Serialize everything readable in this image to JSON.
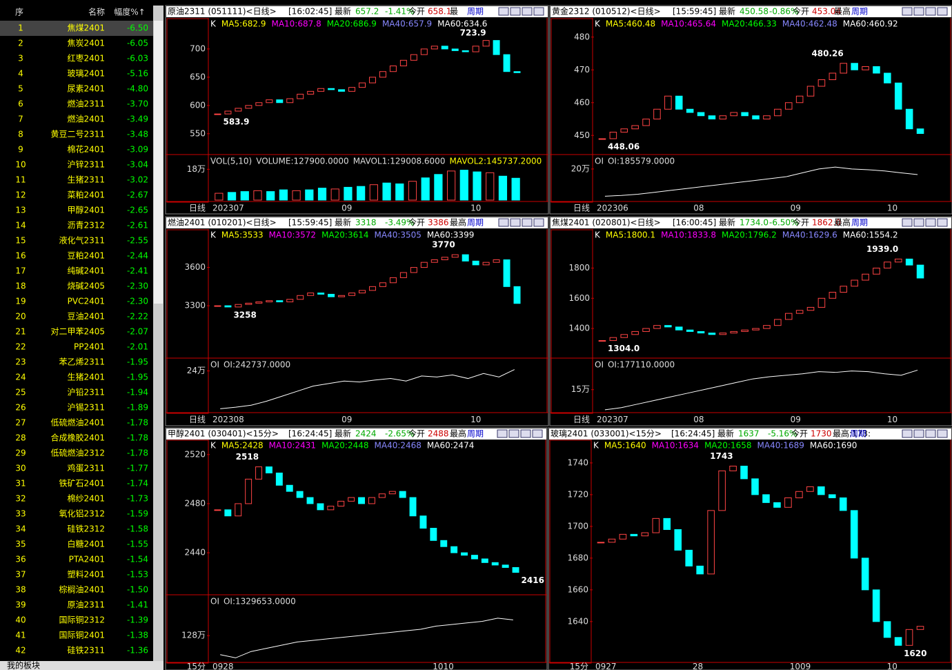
{
  "list": {
    "headers": [
      "序",
      "名称",
      "幅度%↑"
    ],
    "footer": "我的板块",
    "rows": [
      [
        "1",
        "焦煤2401",
        "-6.50"
      ],
      [
        "2",
        "焦炭2401",
        "-6.05"
      ],
      [
        "3",
        "红枣2401",
        "-6.03"
      ],
      [
        "4",
        "玻璃2401",
        "-5.16"
      ],
      [
        "5",
        "尿素2401",
        "-4.80"
      ],
      [
        "6",
        "燃油2311",
        "-3.70"
      ],
      [
        "7",
        "燃油2401",
        "-3.49"
      ],
      [
        "8",
        "黄豆二号2311",
        "-3.48"
      ],
      [
        "9",
        "棉花2401",
        "-3.09"
      ],
      [
        "10",
        "沪锌2311",
        "-3.04"
      ],
      [
        "11",
        "生猪2311",
        "-3.02"
      ],
      [
        "12",
        "菜粕2401",
        "-2.67"
      ],
      [
        "13",
        "甲醇2401",
        "-2.65"
      ],
      [
        "14",
        "沥青2312",
        "-2.61"
      ],
      [
        "15",
        "液化气2311",
        "-2.55"
      ],
      [
        "16",
        "豆粕2401",
        "-2.44"
      ],
      [
        "17",
        "纯碱2401",
        "-2.41"
      ],
      [
        "18",
        "烧碱2405",
        "-2.30"
      ],
      [
        "19",
        "PVC2401",
        "-2.30"
      ],
      [
        "20",
        "豆油2401",
        "-2.22"
      ],
      [
        "21",
        "对二甲苯2405",
        "-2.07"
      ],
      [
        "22",
        "PP2401",
        "-2.01"
      ],
      [
        "23",
        "苯乙烯2311",
        "-1.95"
      ],
      [
        "24",
        "生猪2401",
        "-1.95"
      ],
      [
        "25",
        "沪铅2311",
        "-1.94"
      ],
      [
        "26",
        "沪锡2311",
        "-1.89"
      ],
      [
        "27",
        "低硫燃油2401",
        "-1.78"
      ],
      [
        "28",
        "合成橡胶2401",
        "-1.78"
      ],
      [
        "29",
        "低硫燃油2312",
        "-1.78"
      ],
      [
        "30",
        "鸡蛋2311",
        "-1.77"
      ],
      [
        "31",
        "铁矿石2401",
        "-1.74"
      ],
      [
        "32",
        "棉纱2401",
        "-1.73"
      ],
      [
        "33",
        "氧化铝2312",
        "-1.59"
      ],
      [
        "34",
        "硅铁2312",
        "-1.58"
      ],
      [
        "35",
        "白糖2401",
        "-1.55"
      ],
      [
        "36",
        "PTA2401",
        "-1.54"
      ],
      [
        "37",
        "塑料2401",
        "-1.53"
      ],
      [
        "38",
        "棕榈油2401",
        "-1.50"
      ],
      [
        "39",
        "原油2311",
        "-1.41"
      ],
      [
        "40",
        "国际铜2312",
        "-1.39"
      ],
      [
        "41",
        "国际铜2401",
        "-1.38"
      ],
      [
        "42",
        "硅铁2311",
        "-1.36"
      ]
    ]
  },
  "panels": [
    {
      "title": "原油2311 (051111)<日线>",
      "time": "[16:02:45]",
      "latest_label": "最新",
      "latest": "657.2",
      "change": "-1.41%",
      "open_label": "今开",
      "open": "658.1",
      "extra": "最",
      "period": "周期",
      "ma": [
        "K",
        "MA5:682.9",
        "MA10:687.8",
        "MA20:686.9",
        "MA40:657.9",
        "MA60:634.6"
      ],
      "ylim": [
        518,
        750
      ],
      "yticks": [
        550,
        600,
        650,
        700
      ],
      "high_label": "723.9",
      "low_label": "583.9",
      "closes": [
        585,
        590,
        595,
        600,
        605,
        610,
        605,
        612,
        620,
        625,
        630,
        628,
        625,
        632,
        640,
        650,
        660,
        670,
        680,
        690,
        700,
        705,
        700,
        697,
        695,
        705,
        715,
        690,
        660,
        658
      ],
      "sub": {
        "type": "bar",
        "label": [
          "VOL(5,10)",
          "VOLUME:127900.0000",
          "MAVOL1:129008.6000",
          "MAVOL2:145737.2000"
        ],
        "ylim": [
          0,
          250000
        ],
        "yticks": [
          {
            "value": 180000,
            "label": "18万"
          }
        ],
        "values": [
          40000,
          45000,
          50000,
          55000,
          50000,
          60000,
          55000,
          60000,
          70000,
          65000,
          75000,
          80000,
          90000,
          100000,
          95000,
          110000,
          130000,
          150000,
          170000,
          175000,
          165000,
          160000,
          140000,
          127900
        ]
      },
      "axis_label": "日线",
      "xlabels": [
        "202307",
        "09",
        "10"
      ]
    },
    {
      "title": "黄金2312 (010512)<日线>",
      "time": "[15:59:45]",
      "latest_label": "最新",
      "latest": "450.58",
      "change": "-0.86%",
      "open_label": "今开",
      "open": "453.04",
      "extra": "最高",
      "period": "周期",
      "ma": [
        "K",
        "MA5:460.48",
        "MA10:465.64",
        "MA20:466.33",
        "MA40:462.48",
        "MA60:460.92"
      ],
      "ylim": [
        445,
        485
      ],
      "yticks": [
        450,
        460,
        470,
        480
      ],
      "high_label": "480.26",
      "low_label": "448.06",
      "closes": [
        449,
        451,
        452,
        453,
        455,
        458,
        462,
        458,
        457,
        456,
        455,
        456,
        457,
        456,
        455,
        456,
        458,
        460,
        462,
        465,
        467,
        469,
        472,
        470,
        471,
        469,
        466,
        458,
        452,
        450.58
      ],
      "sub": {
        "type": "line",
        "label": [
          "OI",
          "OI:185579.0000"
        ],
        "ylim": [
          120000,
          230000
        ],
        "yticks": [
          {
            "value": 200000,
            "label": "20万"
          }
        ],
        "values": [
          130000,
          132000,
          135000,
          140000,
          145000,
          150000,
          155000,
          160000,
          165000,
          170000,
          175000,
          180000,
          190000,
          200000,
          205000,
          200000,
          198000,
          195000,
          190000,
          185579
        ]
      },
      "axis_label": "日线",
      "xlabels": [
        "202306",
        "08",
        "09",
        "10"
      ]
    },
    {
      "title": "燃油2401 (010201)<日线>",
      "time": "[15:59:45]",
      "latest_label": "最新",
      "latest": "3318",
      "change": "-3.49%",
      "open_label": "今开",
      "open": "3386",
      "extra": "最高",
      "period": "周期",
      "ma": [
        "K",
        "MA5:3533",
        "MA10:3572",
        "MA20:3614",
        "MA40:3505",
        "MA60:3399"
      ],
      "ylim": [
        2911,
        3879
      ],
      "yticks": [
        3300,
        3600
      ],
      "high_label": "3770",
      "low_label": "3258",
      "closes": [
        3300,
        3290,
        3310,
        3320,
        3330,
        3340,
        3330,
        3350,
        3380,
        3400,
        3390,
        3370,
        3380,
        3400,
        3420,
        3450,
        3480,
        3520,
        3560,
        3600,
        3640,
        3660,
        3680,
        3700,
        3650,
        3620,
        3640,
        3660,
        3450,
        3318
      ],
      "sub": {
        "type": "line",
        "label": [
          "OI",
          "OI:242737.0000"
        ],
        "ylim": [
          160000,
          260000
        ],
        "yticks": [
          {
            "value": 240000,
            "label": "24万"
          }
        ],
        "values": [
          165000,
          168000,
          172000,
          180000,
          190000,
          200000,
          210000,
          215000,
          220000,
          218000,
          222000,
          225000,
          220000,
          230000,
          228000,
          232000,
          225000,
          235000,
          228000,
          242737
        ]
      },
      "axis_label": "日线",
      "xlabels": [
        "202308",
        "09",
        "10"
      ]
    },
    {
      "title": "焦煤2401 (020801)<日线>",
      "time": "[16:00:45]",
      "latest_label": "最新",
      "latest": "1734.0",
      "change": "-6.50%",
      "open_label": "今开",
      "open": "1862.0",
      "extra": "最高",
      "period": "周期",
      "ma": [
        "K",
        "MA5:1800.1",
        "MA10:1833.8",
        "MA20:1796.2",
        "MA40:1629.6",
        "MA60:1554.2"
      ],
      "ylim": [
        1222,
        2040
      ],
      "yticks": [
        1400,
        1600,
        1800
      ],
      "high_label": "1939.0",
      "low_label": "1304.0",
      "closes": [
        1320,
        1340,
        1360,
        1380,
        1400,
        1420,
        1410,
        1390,
        1380,
        1370,
        1360,
        1370,
        1380,
        1390,
        1400,
        1420,
        1460,
        1500,
        1520,
        1540,
        1600,
        1640,
        1680,
        1720,
        1760,
        1800,
        1840,
        1860,
        1820,
        1734
      ],
      "sub": {
        "type": "line",
        "label": [
          "OI",
          "OI:177110.0000"
        ],
        "ylim": [
          120000,
          190000
        ],
        "yticks": [
          {
            "value": 150000,
            "label": "15万"
          }
        ],
        "values": [
          122000,
          125000,
          130000,
          135000,
          140000,
          145000,
          150000,
          155000,
          160000,
          165000,
          168000,
          170000,
          172000,
          175000,
          174000,
          176000,
          175000,
          172000,
          170000,
          177110
        ]
      },
      "axis_label": "日线",
      "xlabels": [
        "202307",
        "08",
        "09",
        "10"
      ]
    },
    {
      "title": "甲醇2401 (030401)<15分>",
      "time": "[16:24:45]",
      "latest_label": "最新",
      "latest": "2424",
      "change": "-2.65%",
      "open_label": "今开",
      "open": "2488",
      "extra": "最高",
      "period": "周期",
      "ma": [
        "K",
        "MA5:2428",
        "MA10:2431",
        "MA20:2448",
        "MA40:2468",
        "MA60:2474"
      ],
      "ylim": [
        2408,
        2530
      ],
      "yticks": [
        2440,
        2480,
        2520
      ],
      "high_label": "2518",
      "low_label": "2416",
      "closes": [
        2475,
        2470,
        2480,
        2500,
        2510,
        2505,
        2495,
        2490,
        2485,
        2480,
        2475,
        2478,
        2482,
        2485,
        2480,
        2485,
        2488,
        2490,
        2485,
        2470,
        2460,
        2450,
        2445,
        2440,
        2438,
        2435,
        2432,
        2430,
        2428,
        2424
      ],
      "sub": {
        "type": "line",
        "label": [
          "OI",
          "OI:1329653.0000"
        ],
        "ylim": [
          1200000,
          1400000
        ],
        "yticks": [
          {
            "value": 1280000,
            "label": "128万"
          }
        ],
        "values": [
          1220000,
          1210000,
          1230000,
          1240000,
          1250000,
          1260000,
          1265000,
          1270000,
          1275000,
          1280000,
          1285000,
          1290000,
          1295000,
          1300000,
          1310000,
          1315000,
          1320000,
          1325000,
          1335000,
          1329653
        ]
      },
      "axis_label": "15分",
      "xlabels": [
        "0928",
        "1010"
      ]
    },
    {
      "title": "玻璃2401 (033001)<15分>",
      "time": "[16:24:45]",
      "latest_label": "最新",
      "latest": "1637",
      "change": "-5.16%",
      "open_label": "今开",
      "open": "1730",
      "extra": "最高:173:",
      "period": "周期",
      "ma": [
        "K",
        "MA5:1640",
        "MA10:1634",
        "MA20:1658",
        "MA40:1689",
        "MA60:1690"
      ],
      "ylim": [
        1616,
        1753
      ],
      "yticks": [
        1640,
        1660,
        1680,
        1700,
        1720,
        1740
      ],
      "high_label": "1743",
      "low_label": "1620",
      "closes": [
        1690,
        1692,
        1695,
        1694,
        1696,
        1705,
        1698,
        1685,
        1675,
        1670,
        1710,
        1735,
        1738,
        1730,
        1720,
        1715,
        1712,
        1718,
        1722,
        1725,
        1720,
        1718,
        1710,
        1680,
        1660,
        1640,
        1630,
        1625,
        1635,
        1637
      ],
      "axis_label": "15分",
      "xlabels": [
        "0927",
        "28",
        "1009",
        "10"
      ]
    }
  ]
}
